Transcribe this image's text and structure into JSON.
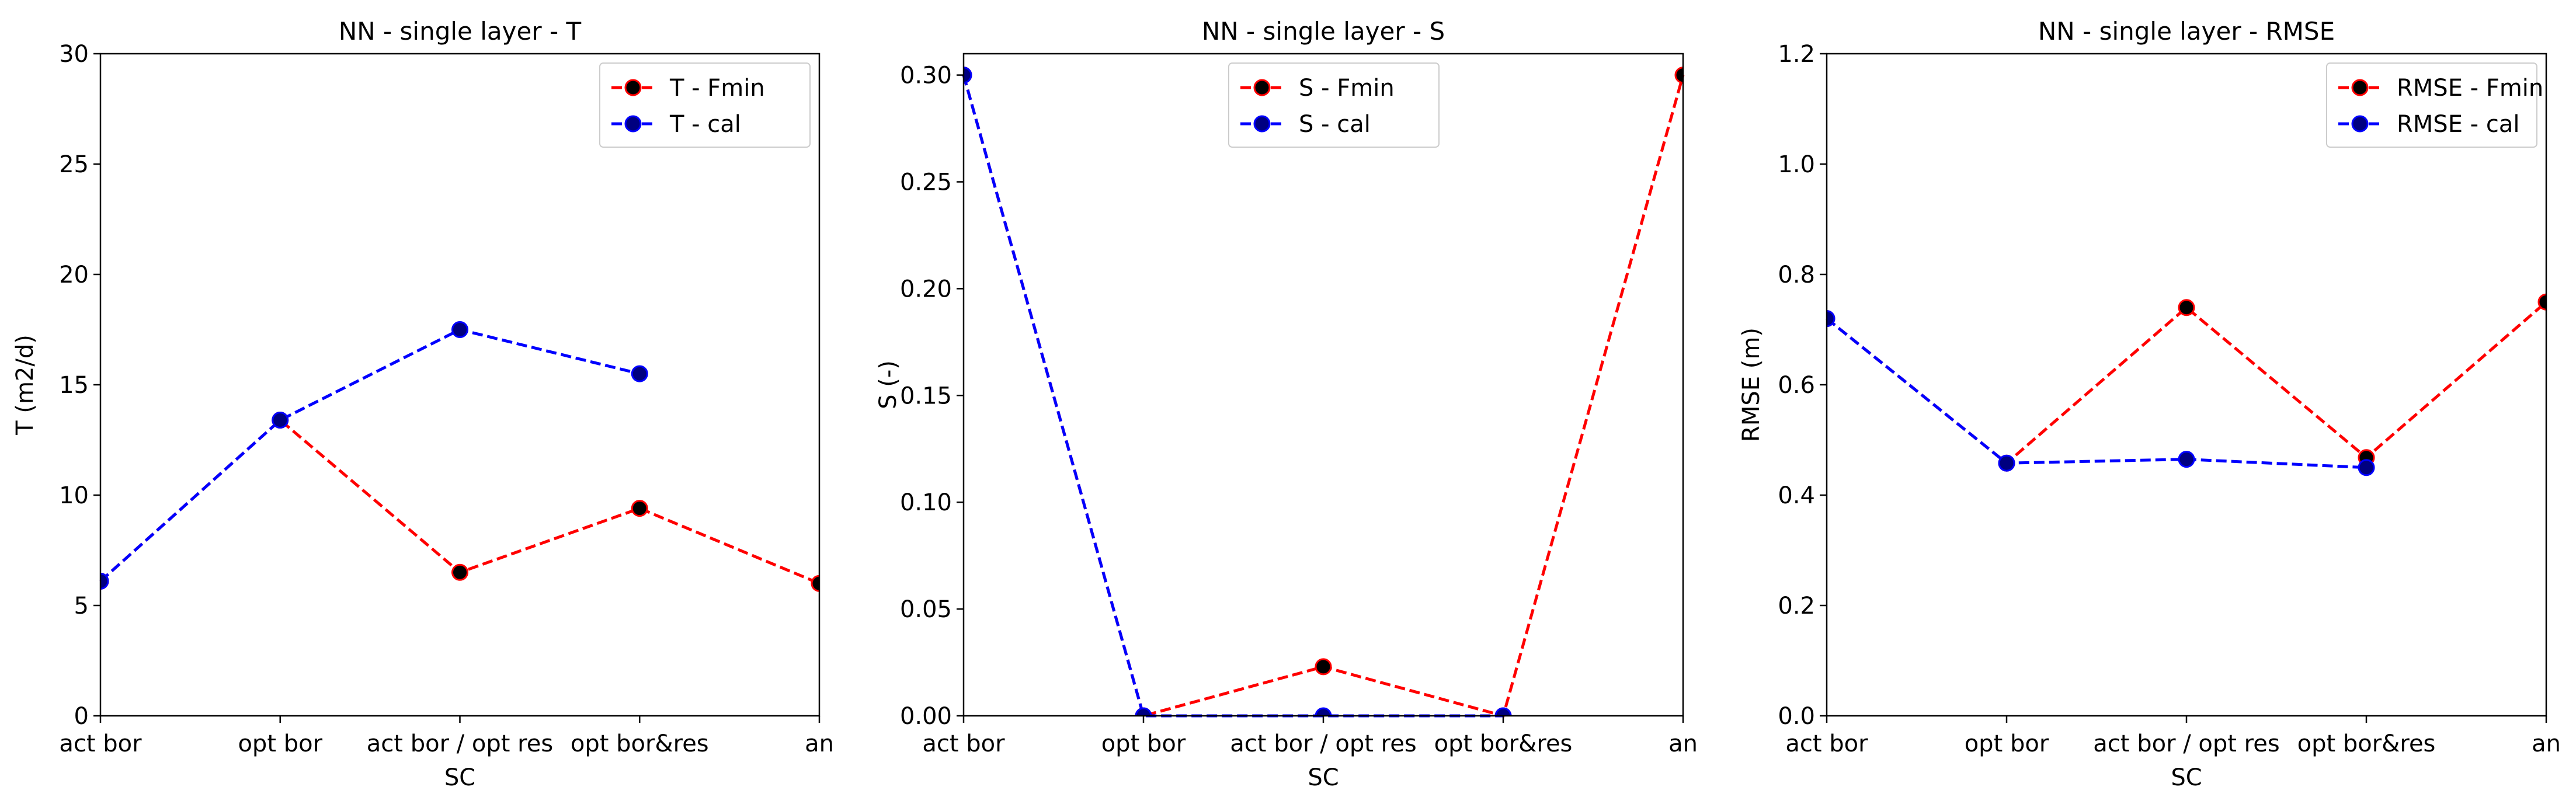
{
  "chart_data": [
    {
      "type": "line",
      "title": "NN - single layer - T",
      "xlabel": "SC",
      "ylabel": "T (m2/d)",
      "categories": [
        "act bor",
        "opt bor",
        "act bor / opt res",
        "opt bor&res",
        "an"
      ],
      "ylim": [
        0,
        30
      ],
      "yticks": [
        0,
        5,
        10,
        15,
        20,
        25,
        30
      ],
      "ytick_labels": [
        "0",
        "5",
        "10",
        "15",
        "20",
        "25",
        "30"
      ],
      "legend_position": "top-right",
      "grid": false,
      "series": [
        {
          "name": "T - Fmin",
          "color": "#ff0000",
          "marker_face": "#000000",
          "values": [
            6.1,
            13.4,
            6.5,
            9.4,
            6.0
          ]
        },
        {
          "name": "T - cal",
          "color": "#0000ff",
          "marker_face": "#000080",
          "values": [
            6.1,
            13.4,
            17.5,
            15.5,
            null
          ]
        }
      ]
    },
    {
      "type": "line",
      "title": "NN - single layer - S",
      "xlabel": "SC",
      "ylabel": "S (-)",
      "categories": [
        "act bor",
        "opt bor",
        "act bor / opt res",
        "opt bor&res",
        "an"
      ],
      "ylim": [
        0,
        0.31
      ],
      "yticks": [
        0,
        0.05,
        0.1,
        0.15,
        0.2,
        0.25,
        0.3
      ],
      "ytick_labels": [
        "0.00",
        "0.05",
        "0.10",
        "0.15",
        "0.20",
        "0.25",
        "0.30"
      ],
      "legend_position": "top-center",
      "grid": false,
      "series": [
        {
          "name": "S - Fmin",
          "color": "#ff0000",
          "marker_face": "#000000",
          "values": [
            0.3,
            0.0,
            0.023,
            0.0,
            0.3
          ]
        },
        {
          "name": "S - cal",
          "color": "#0000ff",
          "marker_face": "#000080",
          "values": [
            0.3,
            0.0,
            0.0,
            0.0,
            null
          ]
        }
      ]
    },
    {
      "type": "line",
      "title": "NN - single layer - RMSE",
      "xlabel": "SC",
      "ylabel": "RMSE (m)",
      "categories": [
        "act bor",
        "opt bor",
        "act bor / opt res",
        "opt bor&res",
        "an"
      ],
      "ylim": [
        0,
        1.2
      ],
      "yticks": [
        0,
        0.2,
        0.4,
        0.6,
        0.8,
        1.0,
        1.2
      ],
      "ytick_labels": [
        "0.0",
        "0.2",
        "0.4",
        "0.6",
        "0.8",
        "1.0",
        "1.2"
      ],
      "legend_position": "top-right",
      "grid": false,
      "series": [
        {
          "name": "RMSE - Fmin",
          "color": "#ff0000",
          "marker_face": "#000000",
          "values": [
            0.72,
            0.458,
            0.74,
            0.468,
            0.75
          ]
        },
        {
          "name": "RMSE - cal",
          "color": "#0000ff",
          "marker_face": "#000080",
          "values": [
            0.72,
            0.458,
            0.465,
            0.45,
            null
          ]
        }
      ]
    }
  ]
}
